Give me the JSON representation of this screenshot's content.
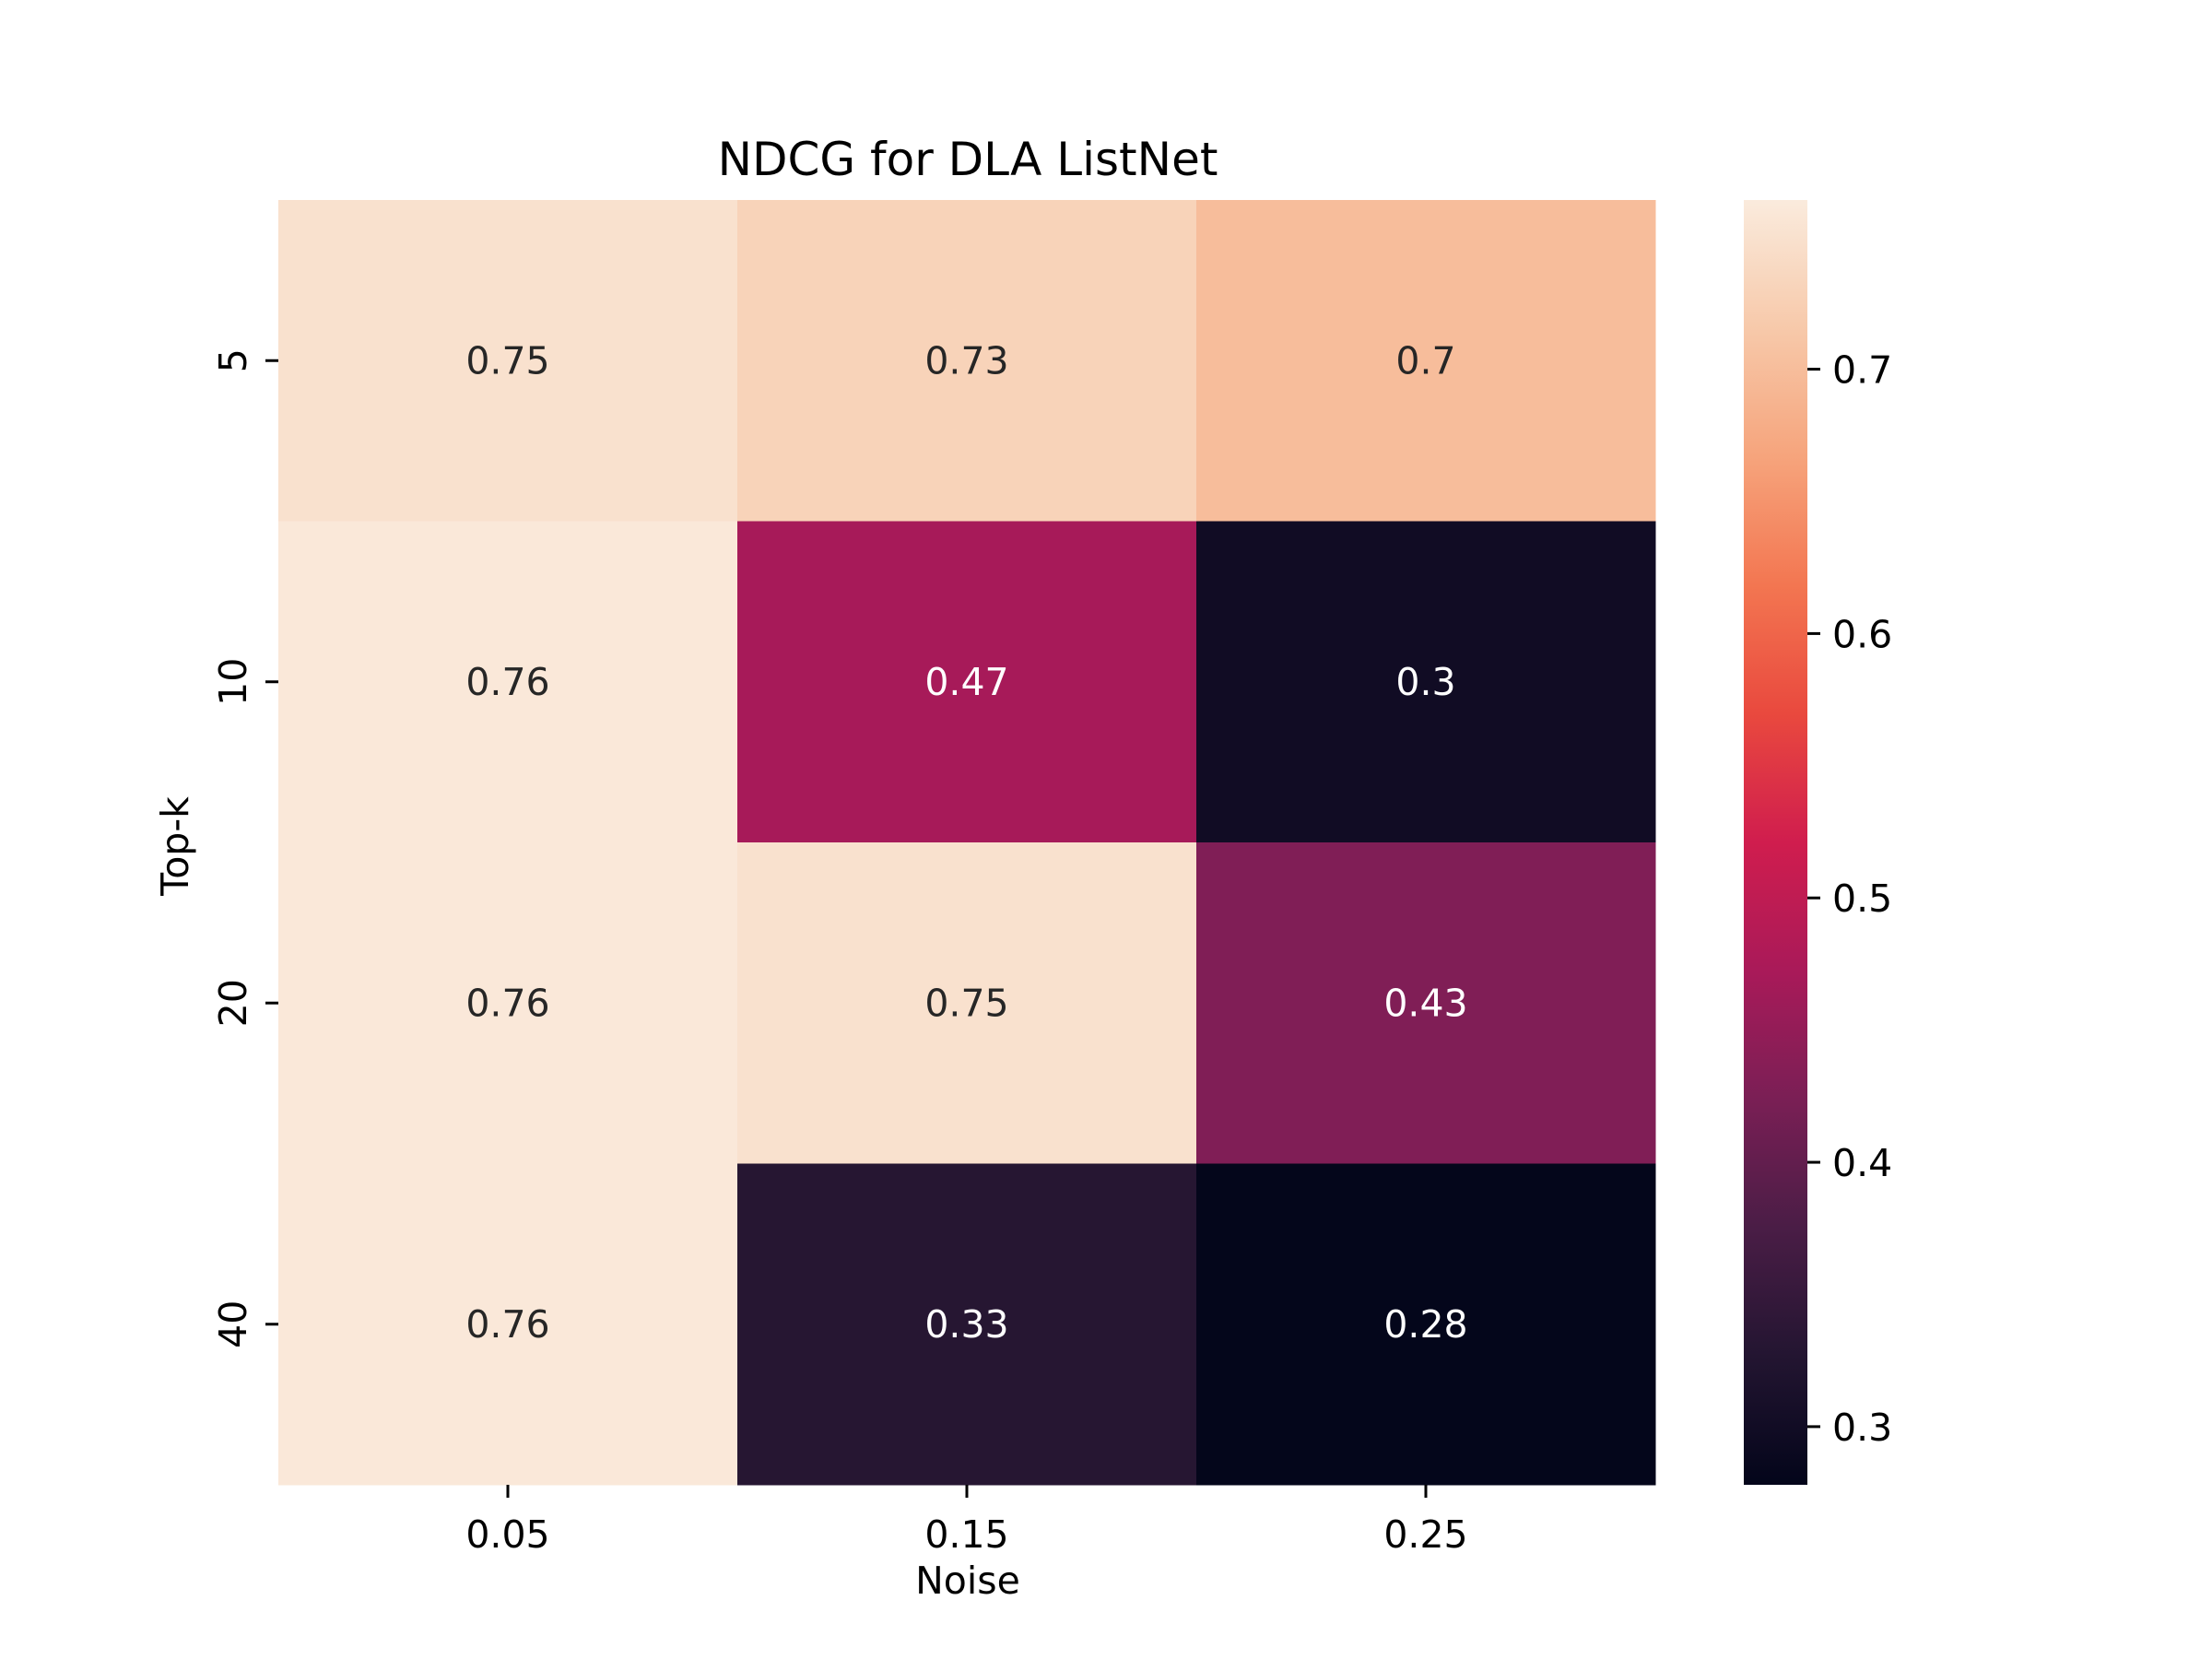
{
  "chart_data": {
    "type": "heatmap",
    "title": "NDCG for DLA ListNet",
    "xlabel": "Noise",
    "ylabel": "Top-k",
    "x_categories": [
      "0.05",
      "0.15",
      "0.25"
    ],
    "y_categories": [
      "5",
      "10",
      "20",
      "40"
    ],
    "values": [
      [
        0.75,
        0.73,
        0.7
      ],
      [
        0.76,
        0.47,
        0.3
      ],
      [
        0.76,
        0.75,
        0.43
      ],
      [
        0.76,
        0.33,
        0.28
      ]
    ],
    "cell_labels": [
      [
        "0.75",
        "0.73",
        "0.7"
      ],
      [
        "0.76",
        "0.47",
        "0.3"
      ],
      [
        "0.76",
        "0.75",
        "0.43"
      ],
      [
        "0.76",
        "0.33",
        "0.28"
      ]
    ],
    "colorbar": {
      "vmin": 0.278,
      "vmax": 0.764,
      "ticks": [
        0.3,
        0.4,
        0.5,
        0.6,
        0.7
      ],
      "tick_labels": [
        "0.3",
        "0.4",
        "0.5",
        "0.6",
        "0.7"
      ]
    },
    "colormap": "rocket",
    "legend": false,
    "grid": false
  }
}
